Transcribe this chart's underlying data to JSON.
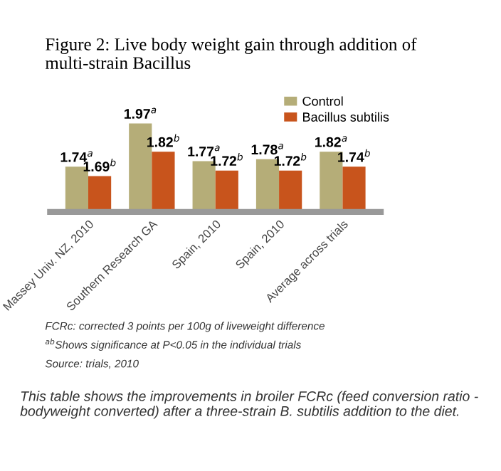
{
  "chart_data": {
    "type": "bar",
    "title": "Figure 2: Live body weight gain through addition of multi-strain Bacillus",
    "categories": [
      "Massey Univ. NZ, 2010",
      "Southern Research GA",
      "Spain, 2010",
      "Spain, 2010",
      "Average across trials"
    ],
    "series": [
      {
        "name": "Control",
        "color": "#b5ad78",
        "values": [
          1.74,
          1.97,
          1.77,
          1.78,
          1.82
        ],
        "value_labels": [
          "1.74$^{a}$",
          "1.97$^{a}$",
          "1.77$^{a}$",
          "1.78$^{a}$",
          "1.82$^{a}$"
        ]
      },
      {
        "name": "Bacillus subtilis",
        "color": "#c8541c",
        "values": [
          1.69,
          1.82,
          1.72,
          1.72,
          1.74
        ],
        "value_labels": [
          "1.69$^{b}$",
          "1.82$^{b}$",
          "1.72$^{b}$",
          "1.72$^{b}$",
          "1.74$^{b}$"
        ]
      }
    ],
    "ylim": [
      1.5,
      2.05
    ],
    "tick_labels": "x",
    "grid": false,
    "legend": "top right",
    "annotations": [
      "FCRc: corrected 3 points per 100g of liveweight difference",
      "$^{ab}$Shows significance at P<0.05 in the individual trials",
      "Source: trials, 2010",
      "This table shows the improvements in broiler FCRc (feed conversion ratio - bodyweight converted) after a three-strain B. subtilis addition to the diet."
    ]
  }
}
